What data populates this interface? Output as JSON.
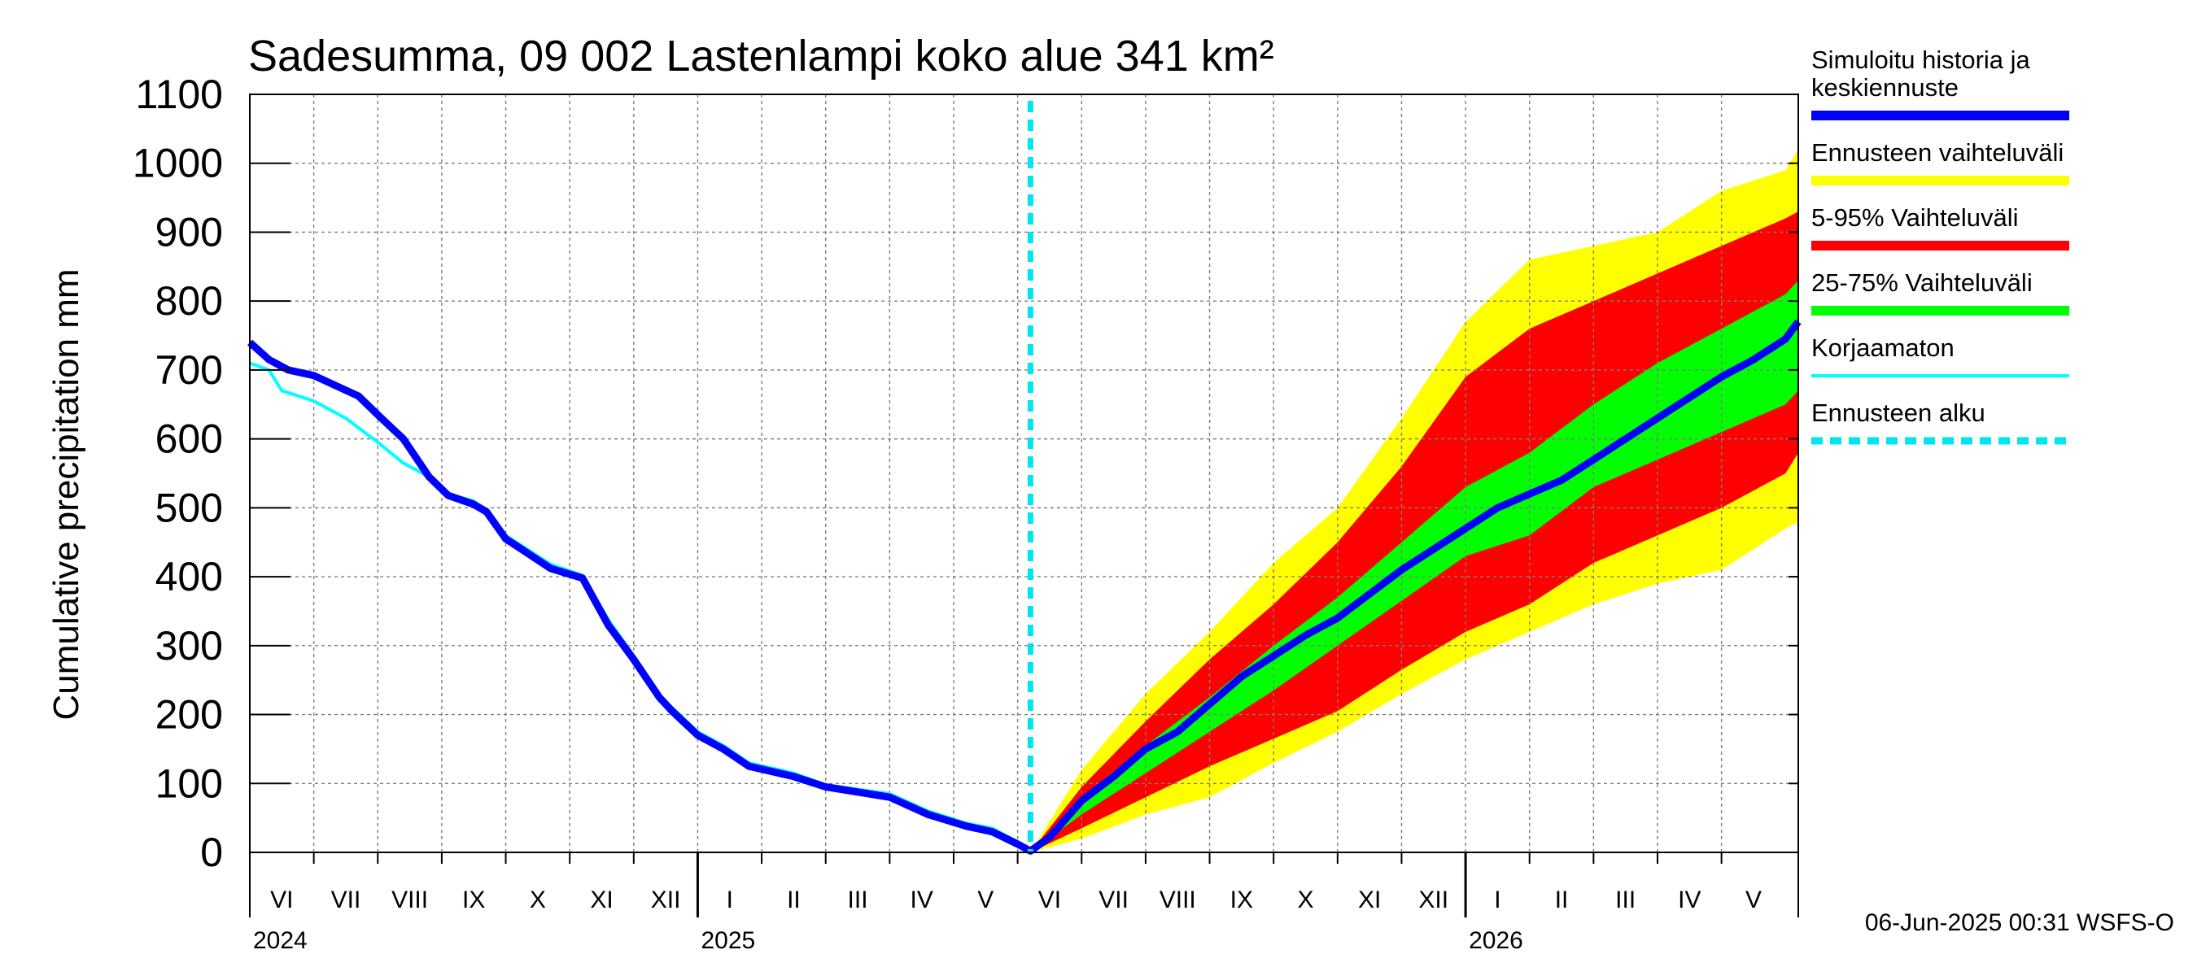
{
  "chart_data": {
    "type": "area",
    "title": "Sadesumma, 09 002 Lastenlampi koko alue 341 km²",
    "ylabel": "Cumulative precipitation   mm",
    "xlabel": "",
    "ylim": [
      0,
      1100
    ],
    "yticks": [
      0,
      100,
      200,
      300,
      400,
      500,
      600,
      700,
      800,
      900,
      1000,
      1100
    ],
    "x_range_months": [
      0,
      24.2
    ],
    "month_labels": [
      "VI",
      "VII",
      "VIII",
      "IX",
      "X",
      "XI",
      "XII",
      "I",
      "II",
      "III",
      "IV",
      "V",
      "VI",
      "VII",
      "VIII",
      "IX",
      "X",
      "XI",
      "XII",
      "I",
      "II",
      "III",
      "IV",
      "V"
    ],
    "year_labels": [
      {
        "label": "2024",
        "month": 0
      },
      {
        "label": "2025",
        "month": 7
      },
      {
        "label": "2026",
        "month": 19
      }
    ],
    "forecast_start_month": 12.2,
    "grid": true,
    "series": [
      {
        "name": "Simuloitu historia ja keskiennuste",
        "color": "#0000ff",
        "x": [
          0,
          0.3,
          0.6,
          1.0,
          1.7,
          2.0,
          2.4,
          2.8,
          3.1,
          3.5,
          3.7,
          4.0,
          4.7,
          5.2,
          5.6,
          6.0,
          6.4,
          6.6,
          7.0,
          7.4,
          7.8,
          8.5,
          9.0,
          10.0,
          10.6,
          11.2,
          11.6,
          12.0,
          12.2,
          12.5,
          13.0,
          13.5,
          14.0,
          14.5,
          15.0,
          15.5,
          16.0,
          16.5,
          17.0,
          17.5,
          18.0,
          18.5,
          19.0,
          19.5,
          20.0,
          20.5,
          21.0,
          21.5,
          22.0,
          22.5,
          23.0,
          23.5,
          24.0,
          24.2
        ],
        "values": [
          740,
          715,
          700,
          692,
          662,
          635,
          600,
          545,
          518,
          505,
          494,
          455,
          412,
          398,
          330,
          280,
          225,
          205,
          170,
          150,
          125,
          110,
          95,
          80,
          55,
          38,
          30,
          12,
          2,
          22,
          75,
          110,
          150,
          175,
          215,
          255,
          285,
          315,
          340,
          375,
          410,
          440,
          470,
          500,
          520,
          540,
          570,
          600,
          630,
          660,
          690,
          715,
          745,
          770
        ]
      },
      {
        "name": "Korjaamaton",
        "color": "#00ffff",
        "x": [
          0,
          0.3,
          0.5,
          1.0,
          1.5,
          2.0,
          2.4,
          2.8,
          3.1,
          3.5,
          3.7,
          4.0,
          4.7,
          5.2,
          5.6,
          6.0,
          6.4,
          6.6,
          7.0,
          7.4,
          7.8,
          8.5,
          9.0,
          10.0,
          10.6,
          11.2,
          11.6,
          12.0,
          12.2
        ],
        "values": [
          710,
          700,
          670,
          655,
          630,
          595,
          565,
          545,
          520,
          510,
          495,
          460,
          418,
          402,
          338,
          285,
          228,
          210,
          175,
          155,
          130,
          115,
          98,
          85,
          60,
          42,
          35,
          15,
          2
        ]
      }
    ],
    "bands": [
      {
        "name": "Ennusteen vaihteluväli",
        "color": "#ffff00",
        "x": [
          12.2,
          13,
          14,
          15,
          16,
          17,
          18,
          19,
          20,
          21,
          22,
          23,
          24,
          24.2
        ],
        "lower": [
          0,
          20,
          55,
          80,
          130,
          175,
          230,
          280,
          320,
          360,
          390,
          410,
          470,
          480
        ],
        "upper": [
          0,
          120,
          230,
          320,
          420,
          500,
          630,
          770,
          860,
          880,
          900,
          960,
          990,
          1020
        ]
      },
      {
        "name": "5-95% Vaihteluväli",
        "color": "#ff0000",
        "x": [
          12.2,
          13,
          14,
          15,
          16,
          17,
          18,
          19,
          20,
          21,
          22,
          23,
          24,
          24.2
        ],
        "lower": [
          0,
          35,
          80,
          125,
          165,
          205,
          265,
          320,
          360,
          420,
          460,
          500,
          550,
          580
        ],
        "upper": [
          0,
          95,
          190,
          280,
          360,
          450,
          560,
          690,
          760,
          800,
          840,
          880,
          920,
          930
        ]
      },
      {
        "name": "25-75% Vaihteluväli",
        "color": "#00ff00",
        "x": [
          12.2,
          13,
          14,
          15,
          16,
          17,
          18,
          19,
          20,
          21,
          22,
          23,
          24,
          24.2
        ],
        "lower": [
          0,
          55,
          115,
          175,
          235,
          300,
          365,
          430,
          460,
          530,
          570,
          610,
          650,
          670
        ],
        "upper": [
          0,
          80,
          155,
          225,
          300,
          370,
          450,
          530,
          580,
          650,
          710,
          760,
          810,
          830
        ]
      }
    ],
    "legend": [
      {
        "label_lines": [
          "Simuloitu historia ja",
          "keskiennuste"
        ],
        "color": "#0000ff",
        "style": "solid"
      },
      {
        "label_lines": [
          "Ennusteen vaihteluväli"
        ],
        "color": "#ffff00",
        "style": "solid"
      },
      {
        "label_lines": [
          "5-95% Vaihteluväli"
        ],
        "color": "#ff0000",
        "style": "solid"
      },
      {
        "label_lines": [
          "25-75% Vaihteluväli"
        ],
        "color": "#00ff00",
        "style": "solid"
      },
      {
        "label_lines": [
          "Korjaamaton"
        ],
        "color": "#00ffff",
        "style": "thin"
      },
      {
        "label_lines": [
          "Ennusteen alku"
        ],
        "color": "#00e5ee",
        "style": "dashed"
      }
    ],
    "legend_position": "right"
  },
  "footer": {
    "timestamp": "06-Jun-2025 00:31 WSFS-O"
  }
}
